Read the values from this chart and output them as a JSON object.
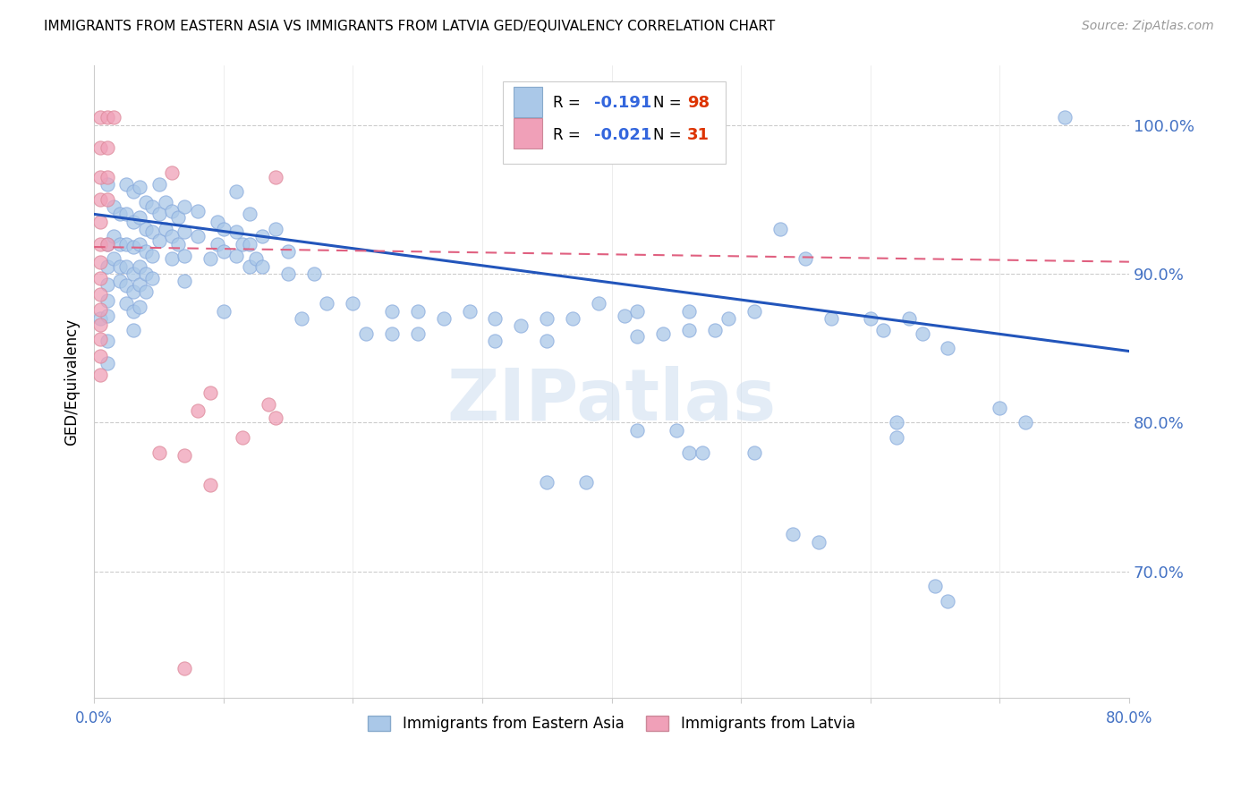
{
  "title": "IMMIGRANTS FROM EASTERN ASIA VS IMMIGRANTS FROM LATVIA GED/EQUIVALENCY CORRELATION CHART",
  "source": "Source: ZipAtlas.com",
  "ylabel": "GED/Equivalency",
  "ytick_labels": [
    "100.0%",
    "90.0%",
    "80.0%",
    "70.0%"
  ],
  "ytick_values": [
    1.0,
    0.9,
    0.8,
    0.7
  ],
  "xmin": 0.0,
  "xmax": 0.8,
  "ymin": 0.615,
  "ymax": 1.04,
  "blue_color": "#aac8e8",
  "pink_color": "#f0a0b8",
  "blue_line_color": "#2255bb",
  "pink_line_color": "#e06080",
  "blue_scatter": [
    [
      0.005,
      0.87
    ],
    [
      0.01,
      0.96
    ],
    [
      0.01,
      0.92
    ],
    [
      0.01,
      0.905
    ],
    [
      0.01,
      0.893
    ],
    [
      0.01,
      0.882
    ],
    [
      0.01,
      0.872
    ],
    [
      0.01,
      0.855
    ],
    [
      0.01,
      0.84
    ],
    [
      0.015,
      0.945
    ],
    [
      0.015,
      0.925
    ],
    [
      0.015,
      0.91
    ],
    [
      0.02,
      0.94
    ],
    [
      0.02,
      0.92
    ],
    [
      0.02,
      0.905
    ],
    [
      0.02,
      0.895
    ],
    [
      0.025,
      0.96
    ],
    [
      0.025,
      0.94
    ],
    [
      0.025,
      0.92
    ],
    [
      0.025,
      0.905
    ],
    [
      0.025,
      0.892
    ],
    [
      0.025,
      0.88
    ],
    [
      0.03,
      0.955
    ],
    [
      0.03,
      0.935
    ],
    [
      0.03,
      0.918
    ],
    [
      0.03,
      0.9
    ],
    [
      0.03,
      0.888
    ],
    [
      0.03,
      0.875
    ],
    [
      0.03,
      0.862
    ],
    [
      0.035,
      0.958
    ],
    [
      0.035,
      0.938
    ],
    [
      0.035,
      0.92
    ],
    [
      0.035,
      0.905
    ],
    [
      0.035,
      0.893
    ],
    [
      0.035,
      0.878
    ],
    [
      0.04,
      0.948
    ],
    [
      0.04,
      0.93
    ],
    [
      0.04,
      0.915
    ],
    [
      0.04,
      0.9
    ],
    [
      0.04,
      0.888
    ],
    [
      0.045,
      0.945
    ],
    [
      0.045,
      0.928
    ],
    [
      0.045,
      0.912
    ],
    [
      0.045,
      0.897
    ],
    [
      0.05,
      0.96
    ],
    [
      0.05,
      0.94
    ],
    [
      0.05,
      0.922
    ],
    [
      0.055,
      0.948
    ],
    [
      0.055,
      0.93
    ],
    [
      0.06,
      0.942
    ],
    [
      0.06,
      0.925
    ],
    [
      0.06,
      0.91
    ],
    [
      0.065,
      0.938
    ],
    [
      0.065,
      0.92
    ],
    [
      0.07,
      0.945
    ],
    [
      0.07,
      0.928
    ],
    [
      0.07,
      0.912
    ],
    [
      0.07,
      0.895
    ],
    [
      0.08,
      0.942
    ],
    [
      0.08,
      0.925
    ],
    [
      0.09,
      0.91
    ],
    [
      0.095,
      0.935
    ],
    [
      0.095,
      0.92
    ],
    [
      0.1,
      0.93
    ],
    [
      0.1,
      0.915
    ],
    [
      0.1,
      0.875
    ],
    [
      0.11,
      0.955
    ],
    [
      0.11,
      0.928
    ],
    [
      0.11,
      0.912
    ],
    [
      0.115,
      0.92
    ],
    [
      0.12,
      0.94
    ],
    [
      0.12,
      0.92
    ],
    [
      0.12,
      0.905
    ],
    [
      0.125,
      0.91
    ],
    [
      0.13,
      0.925
    ],
    [
      0.13,
      0.905
    ],
    [
      0.14,
      0.93
    ],
    [
      0.15,
      0.915
    ],
    [
      0.15,
      0.9
    ],
    [
      0.16,
      0.87
    ],
    [
      0.17,
      0.9
    ],
    [
      0.18,
      0.88
    ],
    [
      0.2,
      0.88
    ],
    [
      0.21,
      0.86
    ],
    [
      0.23,
      0.875
    ],
    [
      0.23,
      0.86
    ],
    [
      0.25,
      0.875
    ],
    [
      0.25,
      0.86
    ],
    [
      0.27,
      0.87
    ],
    [
      0.29,
      0.875
    ],
    [
      0.31,
      0.87
    ],
    [
      0.31,
      0.855
    ],
    [
      0.33,
      0.865
    ],
    [
      0.35,
      0.87
    ],
    [
      0.35,
      0.855
    ],
    [
      0.37,
      0.87
    ],
    [
      0.39,
      0.88
    ],
    [
      0.41,
      0.872
    ],
    [
      0.42,
      0.875
    ],
    [
      0.42,
      0.858
    ],
    [
      0.44,
      0.86
    ],
    [
      0.46,
      0.875
    ],
    [
      0.46,
      0.862
    ],
    [
      0.48,
      0.862
    ],
    [
      0.49,
      0.87
    ],
    [
      0.51,
      0.875
    ],
    [
      0.53,
      0.93
    ],
    [
      0.55,
      0.91
    ],
    [
      0.57,
      0.87
    ],
    [
      0.6,
      0.87
    ],
    [
      0.61,
      0.862
    ],
    [
      0.62,
      0.8
    ],
    [
      0.62,
      0.79
    ],
    [
      0.63,
      0.87
    ],
    [
      0.64,
      0.86
    ],
    [
      0.66,
      0.85
    ],
    [
      0.7,
      0.81
    ],
    [
      0.72,
      0.8
    ],
    [
      0.75,
      1.005
    ],
    [
      0.35,
      0.76
    ],
    [
      0.38,
      0.76
    ],
    [
      0.42,
      0.795
    ],
    [
      0.45,
      0.795
    ],
    [
      0.46,
      0.78
    ],
    [
      0.47,
      0.78
    ],
    [
      0.51,
      0.78
    ],
    [
      0.54,
      0.725
    ],
    [
      0.56,
      0.72
    ],
    [
      0.65,
      0.69
    ],
    [
      0.66,
      0.68
    ]
  ],
  "pink_scatter": [
    [
      0.005,
      1.005
    ],
    [
      0.01,
      1.005
    ],
    [
      0.015,
      1.005
    ],
    [
      0.005,
      0.985
    ],
    [
      0.01,
      0.985
    ],
    [
      0.005,
      0.965
    ],
    [
      0.01,
      0.965
    ],
    [
      0.005,
      0.95
    ],
    [
      0.01,
      0.95
    ],
    [
      0.005,
      0.935
    ],
    [
      0.005,
      0.92
    ],
    [
      0.01,
      0.92
    ],
    [
      0.005,
      0.908
    ],
    [
      0.005,
      0.897
    ],
    [
      0.005,
      0.886
    ],
    [
      0.005,
      0.876
    ],
    [
      0.005,
      0.866
    ],
    [
      0.005,
      0.856
    ],
    [
      0.005,
      0.845
    ],
    [
      0.005,
      0.832
    ],
    [
      0.06,
      0.968
    ],
    [
      0.09,
      0.82
    ],
    [
      0.14,
      0.965
    ],
    [
      0.07,
      0.778
    ],
    [
      0.14,
      0.803
    ],
    [
      0.135,
      0.812
    ],
    [
      0.09,
      0.758
    ],
    [
      0.08,
      0.808
    ],
    [
      0.115,
      0.79
    ],
    [
      0.07,
      0.635
    ],
    [
      0.05,
      0.78
    ]
  ],
  "blue_line_x": [
    0.0,
    0.8
  ],
  "blue_line_y": [
    0.94,
    0.848
  ],
  "pink_line_x": [
    0.0,
    0.8
  ],
  "pink_line_y": [
    0.918,
    0.908
  ],
  "watermark": "ZIPatlas",
  "axis_label_color": "#4472c4",
  "grid_color": "#cccccc",
  "tick_color": "#4472c4"
}
